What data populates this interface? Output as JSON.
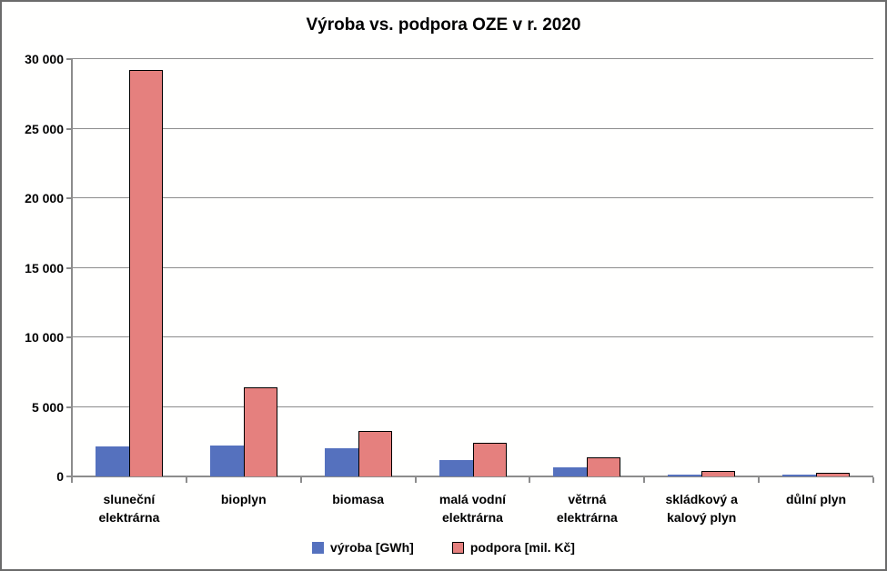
{
  "chart_data": {
    "type": "bar",
    "title": "Výroba vs. podpora OZE v r. 2020",
    "categories": [
      "sluneční\nelektrárna",
      "bioplyn",
      "biomasa",
      "malá vodní\nelektrárna",
      "větrná\nelektrárna",
      "skládkový a\nkalový plyn",
      "důlní plyn"
    ],
    "series": [
      {
        "name": "výroba [GWh]",
        "color": "#5571BE",
        "border_color": "",
        "values": [
          2150,
          2250,
          2000,
          1150,
          650,
          150,
          150
        ]
      },
      {
        "name": "podpora [mil. Kč]",
        "color": "#E5807E",
        "border_color": "#000000",
        "values": [
          29200,
          6400,
          3300,
          2450,
          1350,
          400,
          250
        ]
      }
    ],
    "ylim": [
      0,
      30000
    ],
    "ytick_values": [
      0,
      5000,
      10000,
      15000,
      20000,
      25000,
      30000
    ],
    "ytick_labels": [
      "0",
      "5 000",
      "10 000",
      "15 000",
      "20 000",
      "25 000",
      "30 000"
    ],
    "grid": true,
    "legend_position": "bottom",
    "grid_color": "#8C8C8C",
    "background_color": "#FFFFFE"
  }
}
